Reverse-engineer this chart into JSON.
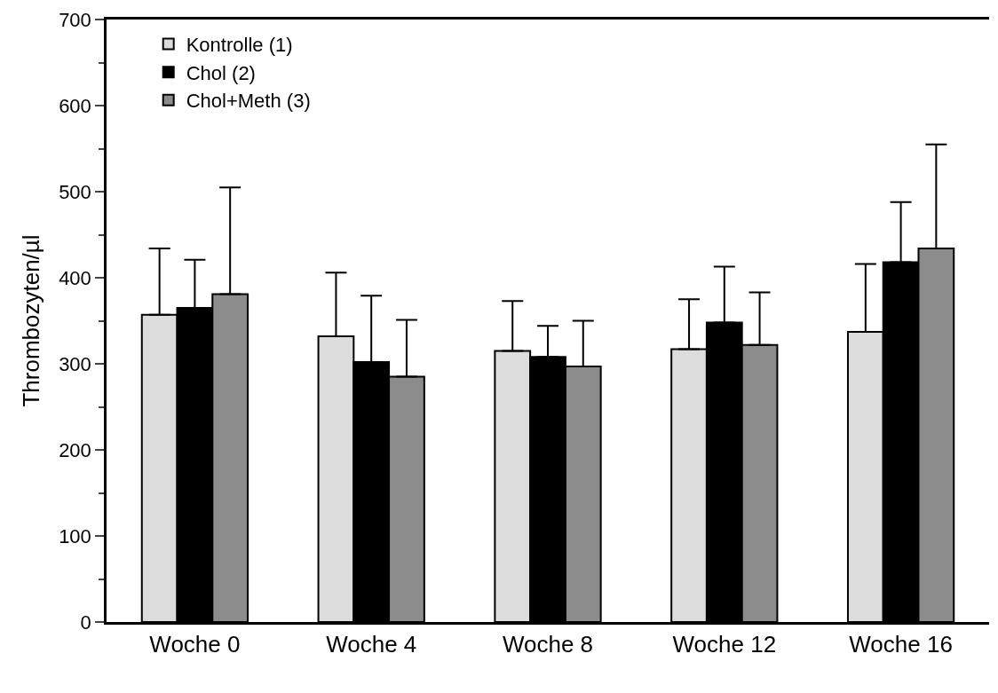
{
  "chart_data": {
    "type": "bar",
    "ylabel": "Thrombozyten/µl",
    "categories": [
      "Woche 0",
      "Woche 4",
      "Woche 8",
      "Woche 12",
      "Woche 16"
    ],
    "series": [
      {
        "name": "Kontrolle (1)",
        "color": "#dcdcdc",
        "values": [
          357,
          332,
          315,
          317,
          337
        ],
        "errors": [
          [
            357,
            434
          ],
          [
            332,
            406
          ],
          [
            315,
            373
          ],
          [
            317,
            375
          ],
          [
            337,
            416
          ]
        ]
      },
      {
        "name": "Chol (2)",
        "color": "#000000",
        "values": [
          365,
          302,
          308,
          348,
          418
        ],
        "errors": [
          [
            365,
            421
          ],
          [
            302,
            379
          ],
          [
            308,
            344
          ],
          [
            348,
            413
          ],
          [
            418,
            488
          ]
        ]
      },
      {
        "name": "Chol+Meth (3)",
        "color": "#8c8c8c",
        "values": [
          381,
          285,
          297,
          322,
          434
        ],
        "errors": [
          [
            381,
            505
          ],
          [
            285,
            351
          ],
          [
            297,
            350
          ],
          [
            322,
            383
          ],
          [
            434,
            555
          ]
        ]
      }
    ],
    "ylim": [
      0,
      700
    ],
    "yticks": [
      0,
      100,
      200,
      300,
      400,
      500,
      600,
      700
    ],
    "legend": "top left"
  }
}
